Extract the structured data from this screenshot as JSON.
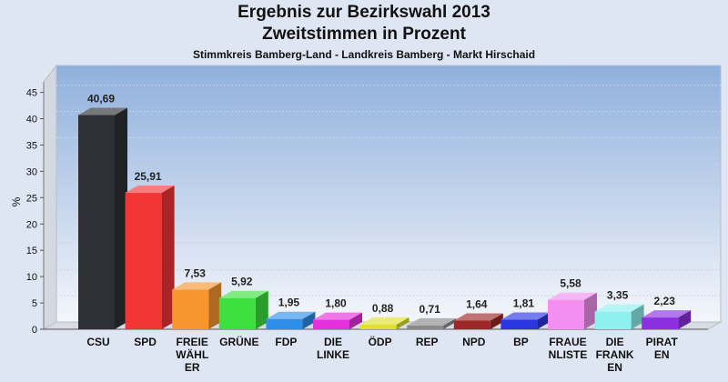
{
  "chart_data": {
    "type": "bar",
    "title": "Ergebnis zur Bezirkswahl 2013",
    "subtitle_line": "Zweitstimmen in Prozent",
    "subtitle": "Stimmkreis Bamberg-Land - Landkreis Bamberg - Markt Hirschaid",
    "ylabel": "%",
    "xlabel": "",
    "ylim": [
      0,
      47
    ],
    "yticks": [
      0,
      5,
      10,
      15,
      20,
      25,
      30,
      35,
      40,
      45
    ],
    "grid": true,
    "categories": [
      "CSU",
      "SPD",
      "FREIE WÄHLER",
      "GRÜNE",
      "FDP",
      "DIE LINKE",
      "ÖDP",
      "REP",
      "NPD",
      "BP",
      "FRAUENLISTE",
      "DIE FRANKEN",
      "PIRATEN"
    ],
    "category_display": [
      [
        "CSU"
      ],
      [
        "SPD"
      ],
      [
        "FREIE",
        "WÄHL",
        "ER"
      ],
      [
        "GRÜNE"
      ],
      [
        "FDP"
      ],
      [
        "DIE",
        "LINKE"
      ],
      [
        "ÖDP"
      ],
      [
        "REP"
      ],
      [
        "NPD"
      ],
      [
        "BP"
      ],
      [
        "FRAUE",
        "NLISTE"
      ],
      [
        "DIE",
        "FRANK",
        "EN"
      ],
      [
        "PIRAT",
        "EN"
      ]
    ],
    "values": [
      40.69,
      25.91,
      7.53,
      5.92,
      1.95,
      1.8,
      0.88,
      0.71,
      1.64,
      1.81,
      5.58,
      3.35,
      2.23
    ],
    "value_labels": [
      "40,69",
      "25,91",
      "7,53",
      "5,92",
      "1,95",
      "1,80",
      "0,88",
      "0,71",
      "1,64",
      "1,81",
      "5,58",
      "3,35",
      "2,23"
    ],
    "colors": [
      "#2e3035",
      "#f23535",
      "#f7962f",
      "#3ee040",
      "#2f8ee8",
      "#e630dc",
      "#e0e030",
      "#8a8a8a",
      "#9c2828",
      "#2a36e0",
      "#f38ff0",
      "#8ff0f0",
      "#8a30e0"
    ]
  }
}
